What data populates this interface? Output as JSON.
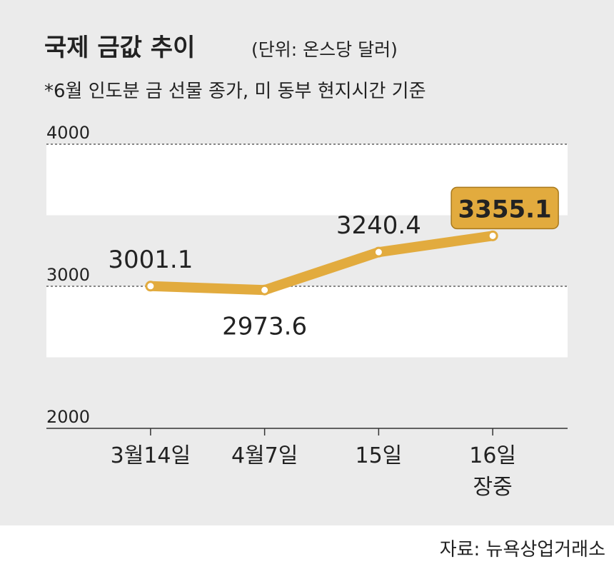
{
  "chart_data": {
    "type": "line",
    "title": "국제 금값 추이",
    "unit": "(단위: 온스당 달러)",
    "subtitle": "*6월 인도분 금 선물 종가, 미 동부 현지시간 기준",
    "categories": [
      "3월14일",
      "4월7일",
      "15일",
      "16일\n장중"
    ],
    "values": [
      3001.1,
      2973.6,
      3240.4,
      3355.1
    ],
    "color": "#e2ab3e",
    "highlight_last": true,
    "ylim": [
      2000,
      4000
    ],
    "yticks": [
      2000,
      3000,
      4000
    ],
    "grid": true,
    "source": "자료: 뉴욕상업거래소"
  }
}
